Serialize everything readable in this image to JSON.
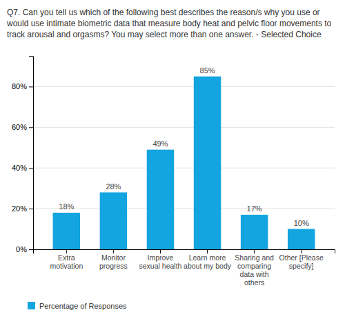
{
  "chart_data": {
    "type": "bar",
    "title": "Q7. Can you tell us which of the following best describes the reason/s why you use or\nwould use intimate biometric data that measure body heat and pelvic floor movements to\ntrack arousal and orgasms? You may select more than one answer. - Selected Choice",
    "categories": [
      "Extra\nmotivation",
      "Monitor\nprogress",
      "Improve\nsexual health",
      "Learn more\nabout my body",
      "Sharing and\ncomparing\ndata with\nothers",
      "Other [Please\nspecify]"
    ],
    "series": [
      {
        "name": "Percentage of Responses",
        "color": "#12a5e0",
        "values": [
          18,
          28,
          49,
          85,
          17,
          10
        ],
        "value_labels": [
          "18%",
          "28%",
          "49%",
          "85%",
          "17%",
          "10%"
        ]
      }
    ],
    "ylim": [
      0,
      95
    ],
    "yticks": [
      {
        "value": 0,
        "label": "0%"
      },
      {
        "value": 20,
        "label": "20%"
      },
      {
        "value": 40,
        "label": "40%"
      },
      {
        "value": 60,
        "label": "60%"
      },
      {
        "value": 80,
        "label": "80%"
      }
    ],
    "grid": true,
    "data_labels": true,
    "legend": "lower left"
  }
}
